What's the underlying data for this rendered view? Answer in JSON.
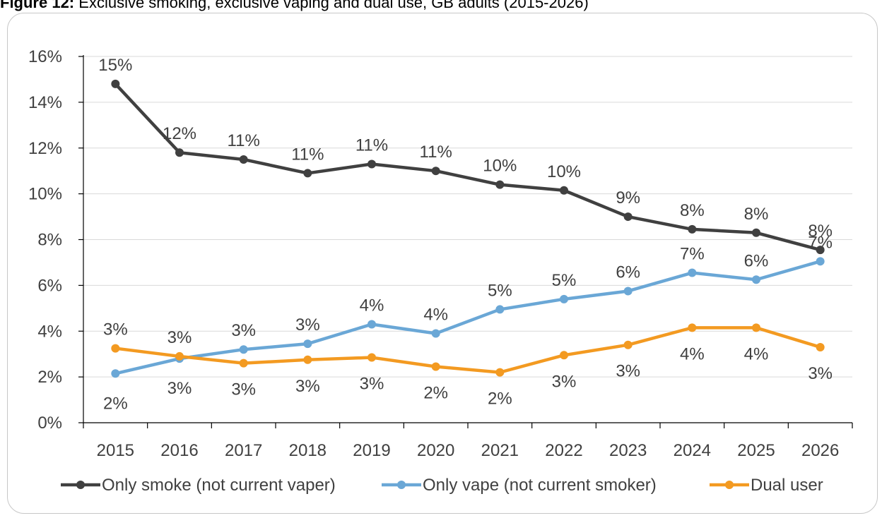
{
  "figure_title": {
    "prefix": "Figure 12:",
    "text": "Exclusive smoking, exclusive vaping and dual use, GB adults (2015-2026)"
  },
  "colors": {
    "smoke": "#404040",
    "vape": "#6aa7d6",
    "dual": "#f39a21",
    "grid": "#d9d9d9",
    "axis": "#000000"
  },
  "chart_data": {
    "type": "line",
    "title": "",
    "xlabel": "",
    "ylabel": "",
    "ylim": [
      0,
      16
    ],
    "y_ticks": [
      "0%",
      "2%",
      "4%",
      "6%",
      "8%",
      "10%",
      "12%",
      "14%",
      "16%"
    ],
    "grid": true,
    "legend_position": "bottom",
    "categories": [
      "2015",
      "2016",
      "2017",
      "2018",
      "2019",
      "2020",
      "2021",
      "2022",
      "2023",
      "2024",
      "2025",
      "2026"
    ],
    "series": [
      {
        "name": "Only smoke (not current vaper)",
        "values": [
          14.8,
          11.8,
          11.5,
          10.9,
          11.3,
          11.0,
          10.4,
          10.15,
          9.0,
          8.45,
          8.3,
          7.55
        ],
        "labels": [
          "15%",
          "12%",
          "11%",
          "11%",
          "11%",
          "11%",
          "10%",
          "10%",
          "9%",
          "8%",
          "8%",
          "8%"
        ]
      },
      {
        "name": "Only vape (not current smoker)",
        "values": [
          2.15,
          2.8,
          3.2,
          3.45,
          4.3,
          3.9,
          4.95,
          5.4,
          5.75,
          6.55,
          6.25,
          7.05
        ],
        "labels": [
          "2%",
          "3%",
          "3%",
          "3%",
          "4%",
          "4%",
          "5%",
          "5%",
          "6%",
          "7%",
          "6%",
          "7%"
        ]
      },
      {
        "name": "Dual user",
        "values": [
          3.25,
          2.9,
          2.6,
          2.75,
          2.85,
          2.45,
          2.2,
          2.95,
          3.4,
          4.15,
          4.15,
          3.3
        ],
        "labels": [
          "3%",
          "3%",
          "3%",
          "3%",
          "3%",
          "2%",
          "2%",
          "3%",
          "3%",
          "4%",
          "4%",
          "3%"
        ]
      }
    ]
  }
}
